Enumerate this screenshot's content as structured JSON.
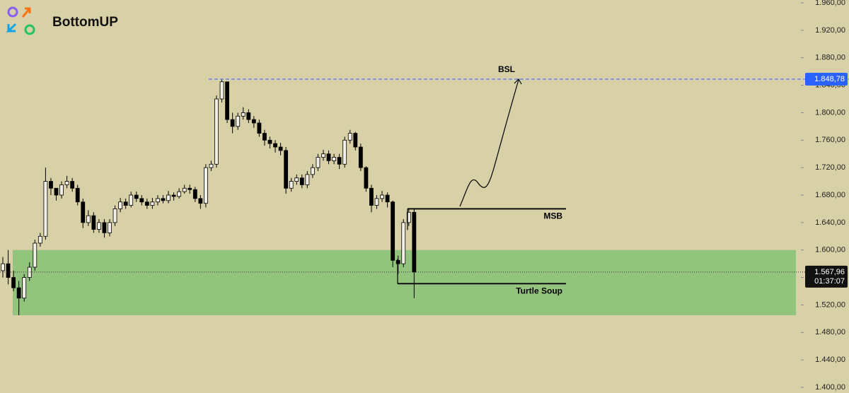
{
  "chart_data": {
    "type": "candlestick",
    "brand": "BottomUP",
    "series": {
      "open": [
        1570,
        1580,
        1560,
        1545,
        1530,
        1560,
        1575,
        1610,
        1620,
        1700,
        1690,
        1680,
        1695,
        1700,
        1690,
        1670,
        1640,
        1650,
        1630,
        1640,
        1625,
        1640,
        1660,
        1670,
        1665,
        1680,
        1675,
        1670,
        1665,
        1670,
        1675,
        1672,
        1680,
        1678,
        1685,
        1690,
        1688,
        1675,
        1668,
        1720,
        1725,
        1820,
        1845,
        1790,
        1780,
        1795,
        1800,
        1790,
        1785,
        1770,
        1760,
        1755,
        1750,
        1745,
        1690,
        1700,
        1705,
        1695,
        1710,
        1720,
        1735,
        1740,
        1730,
        1735,
        1725,
        1760,
        1770,
        1750,
        1720,
        1690,
        1665,
        1675,
        1680,
        1670,
        1585,
        1580,
        1640,
        1655
      ],
      "high": [
        1590,
        1600,
        1570,
        1555,
        1565,
        1582,
        1615,
        1625,
        1720,
        1705,
        1690,
        1700,
        1708,
        1705,
        1695,
        1675,
        1658,
        1655,
        1645,
        1645,
        1645,
        1665,
        1676,
        1675,
        1685,
        1685,
        1680,
        1675,
        1676,
        1680,
        1680,
        1686,
        1684,
        1690,
        1695,
        1695,
        1692,
        1680,
        1725,
        1730,
        1825,
        1848,
        1845,
        1800,
        1800,
        1808,
        1805,
        1795,
        1790,
        1775,
        1765,
        1760,
        1756,
        1750,
        1705,
        1710,
        1710,
        1715,
        1725,
        1740,
        1746,
        1745,
        1740,
        1740,
        1765,
        1775,
        1772,
        1755,
        1722,
        1695,
        1680,
        1686,
        1684,
        1672,
        1592,
        1645,
        1660,
        1660
      ],
      "low": [
        1560,
        1550,
        1540,
        1505,
        1525,
        1555,
        1570,
        1605,
        1615,
        1680,
        1672,
        1675,
        1690,
        1685,
        1665,
        1632,
        1635,
        1625,
        1625,
        1618,
        1620,
        1635,
        1655,
        1660,
        1662,
        1670,
        1665,
        1660,
        1660,
        1665,
        1668,
        1668,
        1672,
        1675,
        1682,
        1682,
        1670,
        1660,
        1662,
        1715,
        1720,
        1815,
        1785,
        1770,
        1775,
        1790,
        1785,
        1778,
        1765,
        1752,
        1748,
        1742,
        1738,
        1682,
        1685,
        1695,
        1690,
        1690,
        1705,
        1715,
        1730,
        1725,
        1725,
        1718,
        1720,
        1755,
        1745,
        1715,
        1685,
        1655,
        1660,
        1670,
        1662,
        1575,
        1565,
        1575,
        1635,
        1530
      ],
      "close": [
        1580,
        1560,
        1545,
        1530,
        1560,
        1575,
        1610,
        1620,
        1700,
        1690,
        1680,
        1695,
        1700,
        1690,
        1670,
        1640,
        1650,
        1630,
        1640,
        1625,
        1640,
        1660,
        1670,
        1665,
        1680,
        1675,
        1670,
        1665,
        1670,
        1675,
        1672,
        1680,
        1678,
        1685,
        1690,
        1688,
        1675,
        1668,
        1720,
        1725,
        1820,
        1845,
        1790,
        1780,
        1795,
        1800,
        1790,
        1785,
        1770,
        1760,
        1755,
        1750,
        1745,
        1690,
        1700,
        1705,
        1695,
        1710,
        1720,
        1735,
        1740,
        1730,
        1735,
        1725,
        1760,
        1770,
        1750,
        1720,
        1690,
        1665,
        1675,
        1680,
        1670,
        1585,
        1580,
        1640,
        1655,
        1568
      ]
    },
    "up_color": "#f2f0e6",
    "down_color": "#000000",
    "ylim": [
      1391.8,
      1964.1
    ],
    "yticks": [
      {
        "value": 1400,
        "label": "1.400,00"
      },
      {
        "value": 1440,
        "label": "1.440,00"
      },
      {
        "value": 1480,
        "label": "1.480,00"
      },
      {
        "value": 1520,
        "label": "1.520,00"
      },
      {
        "value": 1560,
        "label": "1.560,00"
      },
      {
        "value": 1600,
        "label": "1.600,00"
      },
      {
        "value": 1640,
        "label": "1.640,00"
      },
      {
        "value": 1680,
        "label": "1.680,00"
      },
      {
        "value": 1720,
        "label": "1.720,00"
      },
      {
        "value": 1760,
        "label": "1.760,00"
      },
      {
        "value": 1800,
        "label": "1.800,00"
      },
      {
        "value": 1840,
        "label": "1.840,00"
      },
      {
        "value": 1880,
        "label": "1.880,00"
      },
      {
        "value": 1920,
        "label": "1.920,00"
      },
      {
        "value": 1960,
        "label": "1.960,00"
      }
    ],
    "zone": {
      "low": 1505,
      "high": 1600,
      "color": "#93c47d"
    },
    "price_line": {
      "name": "BSL",
      "value": 1848.78,
      "label": "1.848,78",
      "color": "#2962ff"
    },
    "last_price": {
      "value": 1567.96,
      "label": "1.567,96",
      "countdown": "01:37:07"
    },
    "annotations": [
      {
        "text": "MSB",
        "value": 1660
      },
      {
        "text": "Turtle Soup",
        "value": 1551
      }
    ]
  }
}
